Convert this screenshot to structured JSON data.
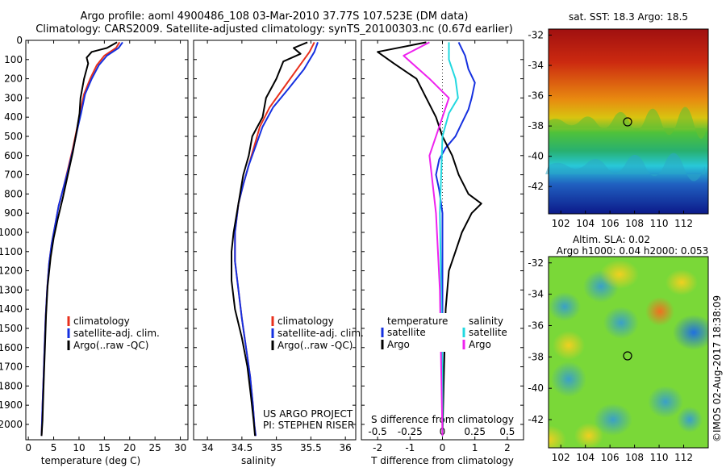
{
  "header": {
    "title_line1": "Argo profile: aoml 4900486_108 03-Mar-2010 37.77S 107.523E (DM data)",
    "title_line2": "Climatology: CARS2009. Satellite-adjusted climatology: synTS_20100303.nc (0.67d earlier)"
  },
  "colors": {
    "climatology": "#e8301c",
    "satellite": "#1530e0",
    "argo": "#000000",
    "salinity_satellite": "#22d8e0",
    "salinity_argo": "#ee22ee"
  },
  "legend_main": {
    "climatology": "climatology",
    "satellite": "satellite-adj. clim.",
    "argo": "Argo(..raw -QC)"
  },
  "legend_diff": {
    "temp_header": "temperature",
    "sal_header": "salinity",
    "temp_satellite": "satellite",
    "temp_argo": "Argo",
    "sal_satellite": "satellite",
    "sal_argo": "Argo"
  },
  "project_note": {
    "line1": "US ARGO PROJECT",
    "line2": "PI: STEPHEN RISER"
  },
  "sst_map": {
    "title": "sat. SST: 18.3 Argo: 18.5",
    "x_ticks": [
      "102",
      "104",
      "106",
      "108",
      "110",
      "112"
    ],
    "y_ticks": [
      "-32",
      "-34",
      "-36",
      "-38",
      "-40",
      "-42"
    ],
    "marker": {
      "lon": 107.523,
      "lat": -37.77
    }
  },
  "sla_map": {
    "title_line1": "Altim. SLA: 0.02",
    "title_line2": "Argo h1000: 0.04 h2000: 0.053",
    "x_ticks": [
      "102",
      "104",
      "106",
      "108",
      "110",
      "112"
    ],
    "y_ticks": [
      "-32",
      "-34",
      "-36",
      "-38",
      "-40",
      "-42"
    ],
    "marker": {
      "lon": 107.523,
      "lat": -37.77
    }
  },
  "credit": "©IMOS 02-Aug-2017 18:38:09",
  "chart_data": [
    {
      "type": "line",
      "xlabel": "temperature (deg C)",
      "ylabel": "",
      "xlim": [
        -0.5,
        31.5
      ],
      "ylim": [
        2080,
        0
      ],
      "x_ticks": [
        0,
        5,
        10,
        15,
        20,
        25,
        30
      ],
      "y_ticks": [
        0,
        100,
        200,
        300,
        400,
        500,
        600,
        700,
        800,
        900,
        1000,
        1100,
        1200,
        1300,
        1400,
        1500,
        1600,
        1700,
        1800,
        1900,
        2000
      ],
      "series": [
        {
          "name": "climatology",
          "x": [
            18.0,
            17.3,
            15.0,
            13.5,
            12.2,
            11.0,
            10.2,
            9.6,
            8.8,
            7.9,
            7.0,
            6.0,
            5.3,
            4.6,
            4.1,
            3.7,
            3.4,
            3.2,
            3.0,
            2.8,
            2.6
          ],
          "y": [
            10,
            40,
            80,
            130,
            200,
            280,
            380,
            460,
            560,
            660,
            760,
            860,
            960,
            1060,
            1160,
            1300,
            1450,
            1600,
            1750,
            1900,
            2060
          ]
        },
        {
          "name": "satellite-adj. clim.",
          "x": [
            18.6,
            17.8,
            15.5,
            13.9,
            12.5,
            11.2,
            10.4,
            9.7,
            8.9,
            8.0,
            7.0,
            6.0,
            5.3,
            4.6,
            4.1,
            3.7,
            3.4,
            3.2,
            3.0,
            2.8,
            2.6
          ],
          "y": [
            10,
            40,
            80,
            130,
            200,
            280,
            380,
            460,
            560,
            660,
            760,
            860,
            960,
            1060,
            1160,
            1300,
            1450,
            1600,
            1750,
            1900,
            2060
          ]
        },
        {
          "name": "Argo(..raw -QC)",
          "x": [
            17.5,
            15.5,
            12.5,
            11.5,
            11.8,
            11.0,
            10.3,
            10.1,
            9.5,
            8.8,
            7.8,
            6.8,
            5.8,
            5.0,
            4.4,
            3.8,
            3.5,
            3.3,
            3.1,
            2.9,
            2.8,
            2.6
          ],
          "y": [
            10,
            40,
            60,
            90,
            120,
            200,
            300,
            380,
            480,
            580,
            700,
            820,
            930,
            1030,
            1130,
            1280,
            1430,
            1580,
            1730,
            1880,
            1980,
            2060
          ]
        }
      ]
    },
    {
      "type": "line",
      "xlabel": "salinity",
      "ylabel": "",
      "xlim": [
        33.8,
        36.15
      ],
      "ylim": [
        2080,
        0
      ],
      "x_ticks": [
        34,
        34.5,
        35,
        35.5,
        36
      ],
      "x_tick_labels": [
        "34",
        "34.5",
        "35",
        "35.5",
        "36"
      ],
      "series": [
        {
          "name": "climatology",
          "x": [
            35.55,
            35.48,
            35.3,
            35.1,
            34.9,
            34.76,
            34.68,
            34.6,
            34.52,
            34.45,
            34.4,
            34.4,
            34.45,
            34.5,
            34.56,
            34.62,
            34.66,
            34.68,
            34.7
          ],
          "y": [
            10,
            60,
            150,
            250,
            350,
            450,
            550,
            650,
            750,
            850,
            1000,
            1150,
            1300,
            1450,
            1600,
            1750,
            1900,
            2000,
            2060
          ]
        },
        {
          "name": "satellite-adj. clim.",
          "x": [
            35.6,
            35.55,
            35.4,
            35.18,
            34.95,
            34.8,
            34.7,
            34.6,
            34.52,
            34.45,
            34.4,
            34.4,
            34.45,
            34.5,
            34.56,
            34.62,
            34.66,
            34.68,
            34.7
          ],
          "y": [
            10,
            60,
            150,
            250,
            350,
            450,
            550,
            650,
            750,
            850,
            1000,
            1150,
            1300,
            1450,
            1600,
            1750,
            1900,
            2000,
            2060
          ]
        },
        {
          "name": "Argo(..raw -QC)",
          "x": [
            35.45,
            35.25,
            35.35,
            35.1,
            35.0,
            34.85,
            34.8,
            34.65,
            34.6,
            34.52,
            34.45,
            34.38,
            34.35,
            34.35,
            34.4,
            34.5,
            34.58,
            34.63,
            34.67,
            34.69
          ],
          "y": [
            10,
            40,
            70,
            110,
            200,
            300,
            400,
            500,
            600,
            700,
            850,
            1000,
            1100,
            1250,
            1400,
            1550,
            1700,
            1850,
            1980,
            2060
          ]
        }
      ]
    },
    {
      "type": "line",
      "xlabel": "T difference from climatology",
      "xlabel_top": "S difference from climatology",
      "ylabel": "",
      "xlim": [
        -2.5,
        2.5
      ],
      "ylim": [
        2080,
        0
      ],
      "x_ticks": [
        -2,
        -1,
        0,
        1,
        2
      ],
      "x_ticks_top": [
        "-0.5",
        "-0.25",
        "0",
        "0.25",
        "0.5"
      ],
      "series": [
        {
          "name": "temperature satellite",
          "x": [
            0.5,
            0.7,
            0.8,
            1.0,
            0.9,
            0.8,
            0.6,
            0.4,
            0.1,
            -0.1,
            -0.2,
            -0.1,
            0.0,
            0.0,
            0.0,
            0.0,
            0.0
          ],
          "y": [
            10,
            80,
            150,
            220,
            300,
            360,
            430,
            500,
            560,
            620,
            700,
            780,
            900,
            1100,
            1400,
            1700,
            2060
          ]
        },
        {
          "name": "temperature Argo",
          "x": [
            -0.5,
            -2.0,
            -1.5,
            -0.8,
            -0.5,
            -0.2,
            0.0,
            0.3,
            0.5,
            0.8,
            1.2,
            0.9,
            0.6,
            0.4,
            0.2,
            0.1,
            0.05,
            0.0
          ],
          "y": [
            10,
            60,
            120,
            200,
            300,
            400,
            500,
            600,
            700,
            800,
            850,
            900,
            1000,
            1100,
            1200,
            1400,
            1700,
            2060
          ]
        },
        {
          "name": "salinity satellite",
          "x": [
            0.05,
            0.05,
            0.1,
            0.12,
            0.05,
            0.0,
            -0.01,
            -0.02,
            -0.01,
            0.0,
            0.0
          ],
          "y": [
            10,
            100,
            200,
            300,
            380,
            500,
            700,
            900,
            1300,
            1700,
            2060
          ]
        },
        {
          "name": "salinity Argo",
          "x": [
            -0.1,
            -0.3,
            -0.1,
            0.05,
            0.0,
            -0.1,
            -0.05,
            -0.02,
            -0.01,
            0.0
          ],
          "y": [
            10,
            80,
            200,
            300,
            400,
            600,
            900,
            1300,
            1700,
            2060
          ]
        }
      ]
    }
  ]
}
